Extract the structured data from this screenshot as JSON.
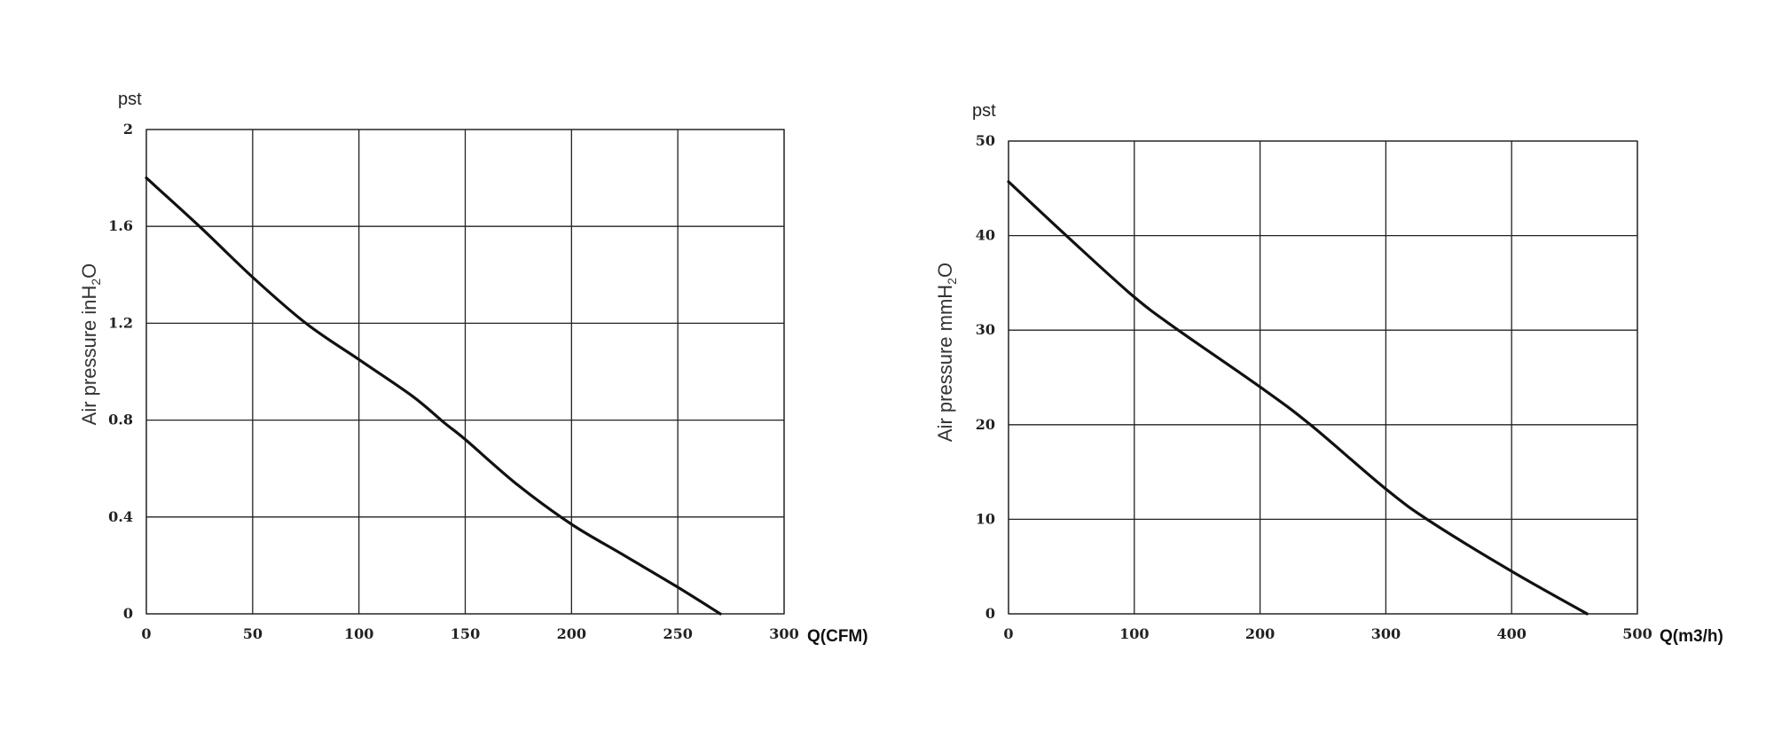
{
  "chart_data": [
    {
      "type": "line",
      "unit_label": "pst",
      "ylabel": "Air pressure inH",
      "ylabel_sub": "2",
      "ylabel_end": "O",
      "xlabel": "Q(CFM)",
      "xlim": [
        0,
        300
      ],
      "ylim": [
        0,
        2
      ],
      "x_ticks": [
        0,
        50,
        100,
        150,
        200,
        250,
        300
      ],
      "x_tick_labels": [
        "0",
        "50",
        "100",
        "150",
        "200",
        "250",
        "300"
      ],
      "y_ticks": [
        0,
        0.4,
        0.8,
        1.2,
        1.6,
        2
      ],
      "y_tick_labels": [
        "0",
        "0.4",
        "0.8",
        "1.2",
        "1.6",
        "2"
      ],
      "grid": true,
      "series": [
        {
          "x": [
            0,
            25,
            50,
            75,
            100,
            125,
            140,
            150,
            175,
            200,
            225,
            250,
            270
          ],
          "y": [
            1.8,
            1.6,
            1.39,
            1.2,
            1.05,
            0.9,
            0.79,
            0.72,
            0.53,
            0.37,
            0.24,
            0.11,
            0
          ]
        }
      ]
    },
    {
      "type": "line",
      "unit_label": "pst",
      "ylabel": "Air pressure mmH",
      "ylabel_sub": "2",
      "ylabel_end": "O",
      "xlabel": "Q(m3/h)",
      "xlim": [
        0,
        500
      ],
      "ylim": [
        0,
        50
      ],
      "x_ticks": [
        0,
        100,
        200,
        300,
        400,
        500
      ],
      "x_tick_labels": [
        "0",
        "100",
        "200",
        "300",
        "400",
        "500"
      ],
      "y_ticks": [
        0,
        10,
        20,
        30,
        40,
        50
      ],
      "y_tick_labels": [
        "0",
        "10",
        "20",
        "30",
        "40",
        "50"
      ],
      "grid": true,
      "series": [
        {
          "x": [
            0,
            50,
            100,
            135,
            200,
            240,
            300,
            335,
            400,
            460
          ],
          "y": [
            45.7,
            39.5,
            33.5,
            30,
            24,
            20,
            13.2,
            9.8,
            4.5,
            0
          ]
        }
      ]
    }
  ]
}
